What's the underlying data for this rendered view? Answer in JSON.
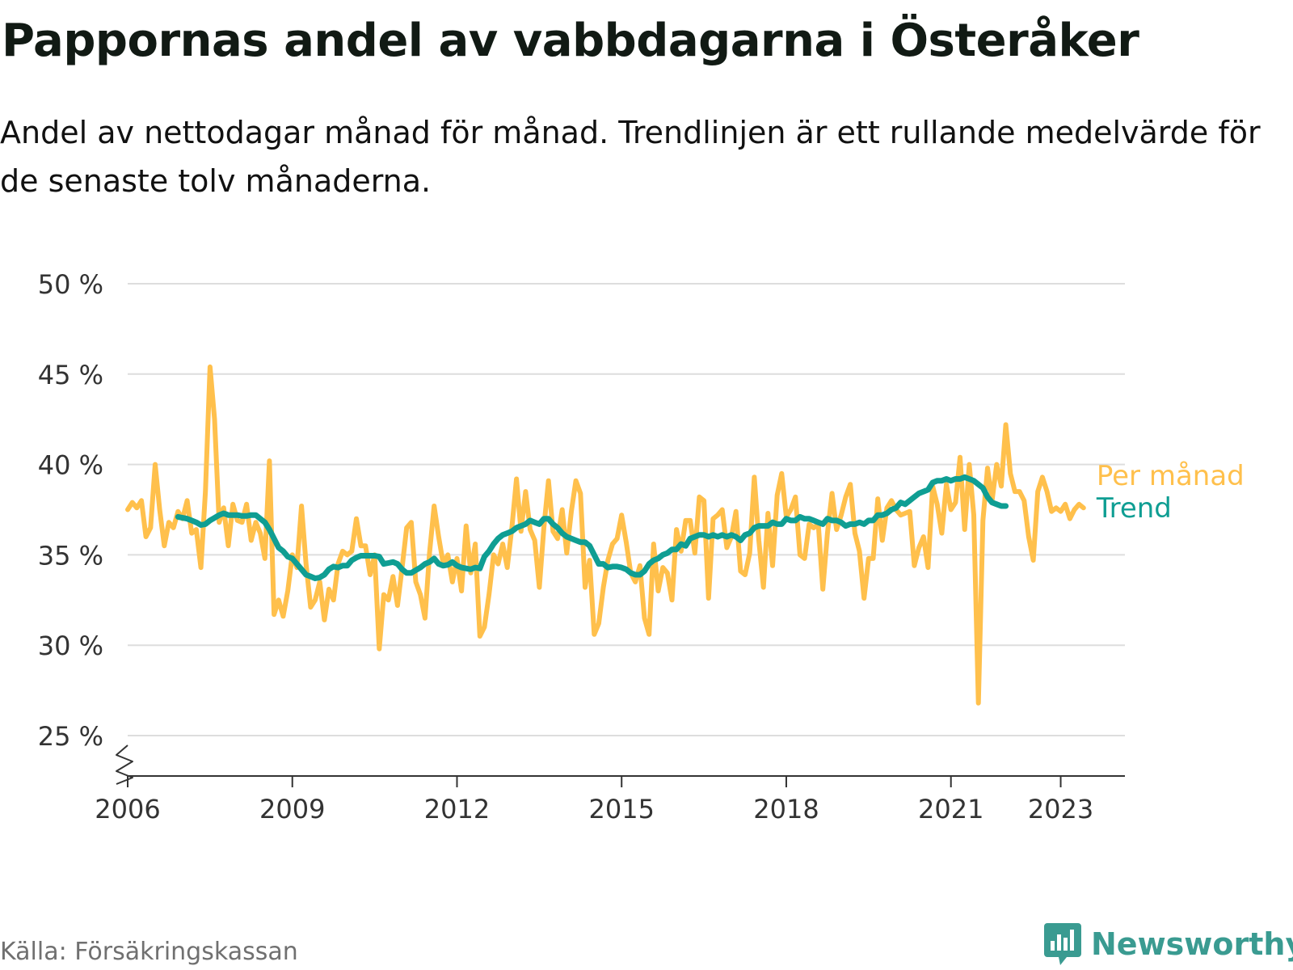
{
  "header": {
    "title": "Pappornas andel av vabbdagarna i Österåker",
    "subtitle": "Andel av nettodagar månad för månad. Trendlinjen är ett rullande medelvärde för de senaste tolv månaderna."
  },
  "footer": {
    "source": "Källa: Försäkringskassan",
    "brand": "Newsworthy"
  },
  "colors": {
    "monthly": "#ffc04c",
    "trend": "#0f9e93",
    "grid": "#dddddd",
    "axis": "#333333",
    "brand": "#3a9b91"
  },
  "chart_data": {
    "type": "line",
    "title": "Pappornas andel av vabbdagarna i Österåker",
    "xlabel": "",
    "ylabel": "",
    "x_start": "2006-01",
    "x_end": "2023-06",
    "xlim": [
      2006.0,
      2024.17
    ],
    "ylim": [
      25,
      50
    ],
    "y_ticks": [
      25,
      30,
      35,
      40,
      45,
      50
    ],
    "y_tick_labels": [
      "25 %",
      "30 %",
      "35 %",
      "40 %",
      "45 %",
      "50 %"
    ],
    "x_ticks": [
      2006,
      2009,
      2012,
      2015,
      2018,
      2021,
      2023
    ],
    "x_tick_labels": [
      "2006",
      "2009",
      "2012",
      "2015",
      "2018",
      "2021",
      "2023"
    ],
    "y_axis_break": true,
    "grid": "horizontal",
    "legend": "end-of-line labels",
    "series": [
      {
        "name": "Per månad",
        "start": "2006-01",
        "values": [
          37.5,
          37.9,
          37.6,
          38.0,
          36.0,
          36.5,
          40.0,
          37.5,
          35.5,
          36.8,
          36.5,
          37.4,
          37.0,
          38.0,
          36.2,
          36.4,
          34.3,
          38.5,
          45.4,
          42.5,
          36.8,
          37.6,
          35.5,
          37.8,
          36.9,
          36.8,
          37.8,
          35.8,
          36.8,
          36.2,
          34.8,
          40.2,
          31.7,
          32.5,
          31.6,
          33.0,
          35.0,
          34.3,
          37.7,
          34.5,
          32.1,
          32.5,
          33.5,
          31.4,
          33.1,
          32.5,
          34.5,
          35.2,
          35.0,
          35.2,
          37.0,
          35.5,
          35.5,
          33.9,
          35.0,
          29.8,
          32.8,
          32.5,
          33.8,
          32.2,
          34.3,
          36.5,
          36.8,
          33.5,
          32.8,
          31.5,
          35.1,
          37.7,
          36.0,
          34.5,
          35.0,
          33.5,
          34.8,
          33.0,
          36.6,
          34.0,
          35.6,
          30.5,
          31.0,
          32.8,
          35.0,
          34.5,
          35.6,
          34.3,
          36.5,
          39.2,
          36.3,
          38.5,
          36.4,
          35.8,
          33.2,
          36.5,
          39.1,
          36.3,
          35.9,
          37.5,
          35.1,
          37.4,
          39.1,
          38.4,
          33.2,
          34.7,
          30.6,
          31.2,
          33.2,
          34.7,
          35.6,
          35.9,
          37.2,
          35.7,
          34.0,
          33.5,
          34.4,
          31.5,
          30.6,
          35.6,
          33.0,
          34.3,
          34.0,
          32.5,
          36.4,
          35.2,
          36.9,
          36.9,
          35.1,
          38.2,
          38.0,
          32.6,
          37.0,
          37.2,
          37.5,
          35.4,
          36.0,
          37.4,
          34.1,
          33.9,
          35.1,
          39.3,
          35.8,
          33.2,
          37.3,
          34.4,
          38.3,
          39.5,
          37.1,
          37.5,
          38.2,
          35.0,
          34.8,
          36.7,
          36.5,
          36.7,
          33.1,
          36.2,
          38.4,
          36.4,
          37.2,
          38.2,
          38.9,
          36.2,
          35.2,
          32.6,
          34.8,
          34.8,
          38.1,
          35.8,
          37.6,
          38.0,
          37.5,
          37.2,
          37.3,
          37.4,
          34.4,
          35.4,
          36.0,
          34.3,
          38.8,
          37.8,
          36.2,
          38.9,
          37.5,
          37.9,
          40.4,
          36.4,
          40.0,
          37.2,
          26.8,
          36.9,
          39.8,
          38.0,
          40.0,
          38.8,
          42.2,
          39.5,
          38.5,
          38.5,
          38.0,
          36.0,
          34.7,
          38.5,
          39.3,
          38.5,
          37.4,
          37.6,
          37.4,
          37.8,
          37.0,
          37.5,
          37.8,
          37.6
        ]
      },
      {
        "name": "Trend",
        "start": "2006-12",
        "values": [
          37.1,
          37.05,
          37.0,
          36.9,
          36.8,
          36.65,
          36.7,
          36.9,
          37.05,
          37.2,
          37.3,
          37.2,
          37.2,
          37.2,
          37.15,
          37.15,
          37.2,
          37.2,
          37.0,
          36.8,
          36.4,
          35.9,
          35.4,
          35.2,
          34.9,
          34.8,
          34.5,
          34.2,
          33.9,
          33.8,
          33.7,
          33.75,
          33.9,
          34.2,
          34.35,
          34.3,
          34.4,
          34.4,
          34.7,
          34.85,
          34.95,
          34.95,
          34.95,
          34.95,
          34.9,
          34.5,
          34.55,
          34.6,
          34.5,
          34.2,
          34.0,
          34.0,
          34.15,
          34.3,
          34.5,
          34.6,
          34.8,
          34.5,
          34.4,
          34.45,
          34.6,
          34.4,
          34.3,
          34.25,
          34.2,
          34.3,
          34.25,
          34.9,
          35.2,
          35.6,
          35.9,
          36.1,
          36.2,
          36.3,
          36.5,
          36.6,
          36.7,
          36.9,
          36.8,
          36.7,
          37.0,
          37.0,
          36.7,
          36.5,
          36.2,
          36.0,
          35.9,
          35.8,
          35.7,
          35.7,
          35.5,
          35.0,
          34.5,
          34.5,
          34.3,
          34.35,
          34.35,
          34.3,
          34.2,
          34.0,
          33.9,
          33.9,
          34.1,
          34.5,
          34.7,
          34.8,
          35.0,
          35.1,
          35.3,
          35.3,
          35.6,
          35.5,
          35.9,
          36.0,
          36.1,
          36.1,
          36.0,
          36.1,
          36.0,
          36.1,
          36.0,
          36.1,
          36.0,
          35.8,
          36.1,
          36.2,
          36.5,
          36.6,
          36.6,
          36.6,
          36.8,
          36.7,
          36.7,
          37.0,
          36.9,
          36.9,
          37.1,
          37.0,
          37.0,
          36.9,
          36.8,
          36.7,
          37.0,
          36.9,
          36.9,
          36.8,
          36.6,
          36.7,
          36.7,
          36.8,
          36.7,
          36.9,
          36.9,
          37.2,
          37.2,
          37.3,
          37.5,
          37.6,
          37.9,
          37.8,
          38.0,
          38.2,
          38.4,
          38.5,
          38.6,
          39.0,
          39.1,
          39.1,
          39.2,
          39.1,
          39.2,
          39.2,
          39.3,
          39.2,
          39.1,
          38.9,
          38.7,
          38.2,
          37.9,
          37.8,
          37.7,
          37.7
        ]
      }
    ],
    "end_labels": [
      "Per månad",
      "Trend"
    ]
  }
}
